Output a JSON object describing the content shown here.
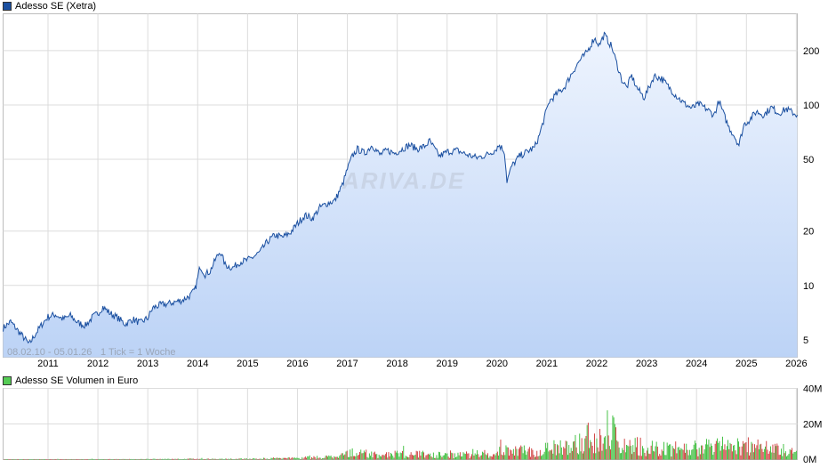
{
  "chart_data": [
    {
      "type": "area",
      "legend": "Adesso SE (Xetra)",
      "series_color": "#1a4fa0",
      "fill_top": "#eef4fe",
      "fill_bottom": "#bcd3f6",
      "y_scale": "log",
      "ylim": [
        4,
        320
      ],
      "y_ticks": [
        5,
        10,
        20,
        50,
        100,
        200
      ],
      "y_tick_labels": [
        "5",
        "10",
        "20",
        "50",
        "100",
        "200"
      ],
      "x_range": [
        2010.1,
        2026.02
      ],
      "x_ticks": [
        2011,
        2012,
        2013,
        2014,
        2015,
        2016,
        2017,
        2018,
        2019,
        2020,
        2021,
        2022,
        2023,
        2024,
        2025,
        2026
      ],
      "x_tick_labels": [
        "2011",
        "2012",
        "2013",
        "2014",
        "2015",
        "2016",
        "2017",
        "2018",
        "2019",
        "2020",
        "2021",
        "2022",
        "2023",
        "2024",
        "2025",
        "2026"
      ],
      "range_text": "08.02.10 - 05.01.26",
      "tick_text": "1 Tick = 1 Woche",
      "watermark": "ARIVA.DE",
      "points": [
        [
          2010.1,
          5.8
        ],
        [
          2010.25,
          6.3
        ],
        [
          2010.4,
          5.6
        ],
        [
          2010.55,
          5.0
        ],
        [
          2010.62,
          4.7
        ],
        [
          2010.75,
          5.4
        ],
        [
          2010.9,
          6.2
        ],
        [
          2011.0,
          6.7
        ],
        [
          2011.15,
          6.9
        ],
        [
          2011.3,
          6.5
        ],
        [
          2011.45,
          6.8
        ],
        [
          2011.6,
          6.2
        ],
        [
          2011.75,
          6.0
        ],
        [
          2011.9,
          6.7
        ],
        [
          2012.0,
          7.0
        ],
        [
          2012.1,
          7.6
        ],
        [
          2012.25,
          7.0
        ],
        [
          2012.4,
          6.6
        ],
        [
          2012.55,
          6.1
        ],
        [
          2012.7,
          6.5
        ],
        [
          2012.85,
          6.2
        ],
        [
          2013.0,
          6.6
        ],
        [
          2013.1,
          7.5
        ],
        [
          2013.25,
          7.8
        ],
        [
          2013.4,
          7.9
        ],
        [
          2013.55,
          8.1
        ],
        [
          2013.7,
          8.3
        ],
        [
          2013.85,
          8.8
        ],
        [
          2013.95,
          9.5
        ],
        [
          2014.0,
          11.0
        ],
        [
          2014.05,
          12.8
        ],
        [
          2014.15,
          11.5
        ],
        [
          2014.25,
          12.0
        ],
        [
          2014.35,
          13.8
        ],
        [
          2014.45,
          15.5
        ],
        [
          2014.55,
          13.0
        ],
        [
          2014.7,
          12.5
        ],
        [
          2014.85,
          13.5
        ],
        [
          2015.0,
          13.8
        ],
        [
          2015.1,
          14.3
        ],
        [
          2015.25,
          15.3
        ],
        [
          2015.4,
          17.5
        ],
        [
          2015.55,
          19.0
        ],
        [
          2015.7,
          18.5
        ],
        [
          2015.85,
          19.5
        ],
        [
          2016.0,
          22.0
        ],
        [
          2016.15,
          24.5
        ],
        [
          2016.3,
          23.5
        ],
        [
          2016.45,
          27.0
        ],
        [
          2016.6,
          28.5
        ],
        [
          2016.75,
          29.5
        ],
        [
          2016.9,
          36.0
        ],
        [
          2017.0,
          44.0
        ],
        [
          2017.1,
          52.0
        ],
        [
          2017.2,
          57.0
        ],
        [
          2017.35,
          54.0
        ],
        [
          2017.5,
          60.0
        ],
        [
          2017.65,
          53.0
        ],
        [
          2017.8,
          56.0
        ],
        [
          2017.95,
          54.0
        ],
        [
          2018.1,
          57.0
        ],
        [
          2018.25,
          60.0
        ],
        [
          2018.4,
          57.0
        ],
        [
          2018.55,
          59.0
        ],
        [
          2018.65,
          63.0
        ],
        [
          2018.75,
          57.0
        ],
        [
          2018.85,
          52.0
        ],
        [
          2019.0,
          55.0
        ],
        [
          2019.2,
          56.0
        ],
        [
          2019.4,
          53.0
        ],
        [
          2019.6,
          51.0
        ],
        [
          2019.8,
          53.0
        ],
        [
          2019.95,
          56.0
        ],
        [
          2020.05,
          60.0
        ],
        [
          2020.15,
          55.0
        ],
        [
          2020.2,
          38.0
        ],
        [
          2020.3,
          46.0
        ],
        [
          2020.45,
          52.0
        ],
        [
          2020.6,
          55.0
        ],
        [
          2020.75,
          58.0
        ],
        [
          2020.85,
          68.0
        ],
        [
          2020.95,
          85.0
        ],
        [
          2021.05,
          105.0
        ],
        [
          2021.2,
          115.0
        ],
        [
          2021.35,
          125.0
        ],
        [
          2021.5,
          150.0
        ],
        [
          2021.65,
          175.0
        ],
        [
          2021.8,
          195.0
        ],
        [
          2021.95,
          235.0
        ],
        [
          2022.05,
          215.0
        ],
        [
          2022.15,
          245.0
        ],
        [
          2022.3,
          210.0
        ],
        [
          2022.4,
          170.0
        ],
        [
          2022.5,
          138.0
        ],
        [
          2022.6,
          125.0
        ],
        [
          2022.7,
          145.0
        ],
        [
          2022.8,
          125.0
        ],
        [
          2022.95,
          110.0
        ],
        [
          2023.05,
          125.0
        ],
        [
          2023.15,
          145.0
        ],
        [
          2023.3,
          140.0
        ],
        [
          2023.45,
          125.0
        ],
        [
          2023.6,
          112.0
        ],
        [
          2023.75,
          102.0
        ],
        [
          2023.9,
          96.0
        ],
        [
          2024.05,
          101.0
        ],
        [
          2024.2,
          95.0
        ],
        [
          2024.35,
          88.0
        ],
        [
          2024.45,
          105.0
        ],
        [
          2024.55,
          88.0
        ],
        [
          2024.65,
          75.0
        ],
        [
          2024.75,
          68.0
        ],
        [
          2024.85,
          60.0
        ],
        [
          2024.95,
          78.0
        ],
        [
          2025.05,
          82.0
        ],
        [
          2025.2,
          92.0
        ],
        [
          2025.35,
          88.0
        ],
        [
          2025.5,
          97.0
        ],
        [
          2025.65,
          90.0
        ],
        [
          2025.8,
          95.0
        ],
        [
          2025.95,
          90.0
        ],
        [
          2026.02,
          88.0
        ]
      ]
    },
    {
      "type": "bar",
      "legend": "Adesso SE Volumen in Euro",
      "legend_color": "#2aaa2a",
      "up_color": "#33bb33",
      "down_color": "#cc3333",
      "ylim": [
        0,
        40
      ],
      "y_ticks": [
        0,
        20,
        40
      ],
      "y_tick_labels": [
        "0M",
        "20M",
        "40M"
      ],
      "envelope": [
        [
          2010.1,
          0.2
        ],
        [
          2013.0,
          0.4
        ],
        [
          2015.0,
          0.7
        ],
        [
          2016.8,
          2.5
        ],
        [
          2017.05,
          7.5
        ],
        [
          2017.5,
          5.0
        ],
        [
          2018.5,
          5.0
        ],
        [
          2019.5,
          4.5
        ],
        [
          2020.15,
          8.0
        ],
        [
          2020.8,
          8.0
        ],
        [
          2021.0,
          12.0
        ],
        [
          2021.5,
          14.0
        ],
        [
          2022.0,
          16.0
        ],
        [
          2022.2,
          32.0
        ],
        [
          2022.5,
          15.0
        ],
        [
          2023.0,
          12.0
        ],
        [
          2023.5,
          10.0
        ],
        [
          2024.0,
          12.0
        ],
        [
          2024.8,
          14.0
        ],
        [
          2025.5,
          10.0
        ],
        [
          2026.02,
          9.0
        ]
      ]
    }
  ]
}
